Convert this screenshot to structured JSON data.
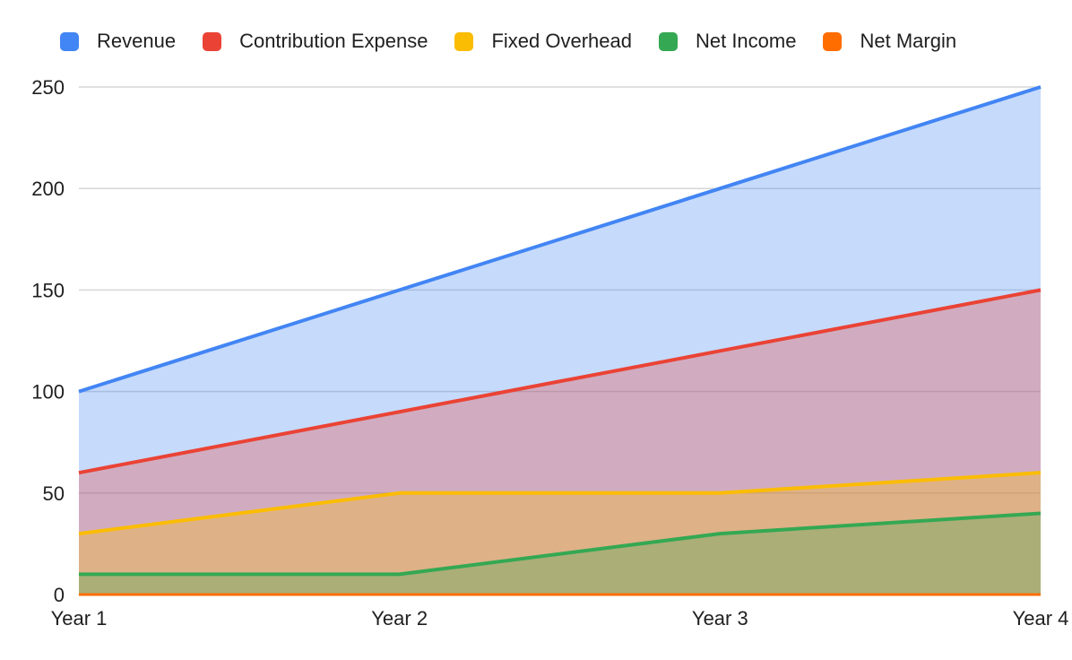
{
  "chart_data": {
    "type": "area",
    "title": "",
    "categories": [
      "Year 1",
      "Year 2",
      "Year 3",
      "Year 4"
    ],
    "series": [
      {
        "name": "Revenue",
        "color": "#4285F4",
        "values": [
          100,
          150,
          200,
          250
        ]
      },
      {
        "name": "Contribution Expense",
        "color": "#EA4335",
        "values": [
          60,
          90,
          120,
          150
        ]
      },
      {
        "name": "Fixed Overhead",
        "color": "#FBBC04",
        "values": [
          30,
          50,
          50,
          60
        ]
      },
      {
        "name": "Net Income",
        "color": "#34A853",
        "values": [
          10,
          10,
          30,
          40
        ]
      },
      {
        "name": "Net Margin",
        "color": "#FF6D01",
        "values": [
          0,
          0,
          0,
          0
        ]
      }
    ],
    "ylim": [
      0,
      250
    ],
    "yticks": [
      0,
      50,
      100,
      150,
      200,
      250
    ],
    "xlabel": "",
    "ylabel": "",
    "grid": true,
    "gridline_color": "#d6d6d6",
    "fill_opacity": 0.3,
    "legend_position": "top",
    "axis_text_color": "#1f1f1f"
  }
}
